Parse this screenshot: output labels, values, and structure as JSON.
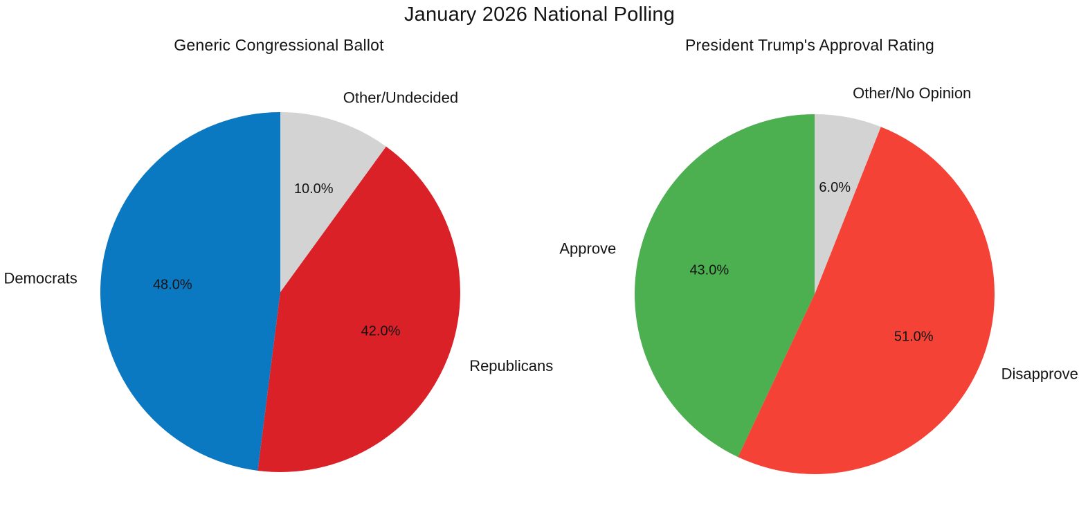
{
  "suptitle": "January 2026 National Polling",
  "chart_data": [
    {
      "type": "pie",
      "title": "Generic Congressional Ballot",
      "labels": [
        "Democrats",
        "Republicans",
        "Other/Undecided"
      ],
      "values": [
        48.0,
        42.0,
        10.0
      ],
      "pct_labels": [
        "48.0%",
        "42.0%",
        "10.0%"
      ],
      "colors": [
        "#0b78c2",
        "#da2128",
        "#d3d3d3"
      ],
      "start_angle": 90,
      "direction": "counterclockwise",
      "legend": "none"
    },
    {
      "type": "pie",
      "title": "President Trump's Approval Rating",
      "labels": [
        "Approve",
        "Disapprove",
        "Other/No Opinion"
      ],
      "values": [
        43.0,
        51.0,
        6.0
      ],
      "pct_labels": [
        "43.0%",
        "51.0%",
        "6.0%"
      ],
      "colors": [
        "#4caf50",
        "#f44336",
        "#d3d3d3"
      ],
      "start_angle": 90,
      "direction": "counterclockwise",
      "legend": "none"
    }
  ],
  "text_color": "#141414",
  "background_color": "#ffffff"
}
